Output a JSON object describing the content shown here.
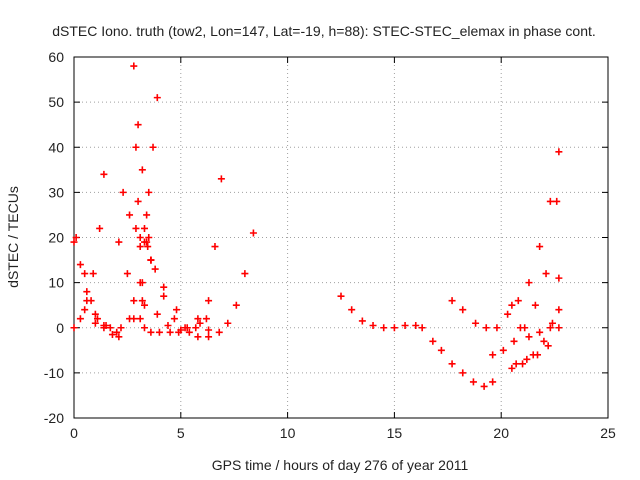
{
  "chart_data": {
    "type": "scatter",
    "title": "dSTEC Iono. truth (tow2, Lon=147, Lat=-19, h=88): STEC-STEC_elemax in phase cont.",
    "xlabel": "GPS time / hours of day 276 of year 2011",
    "ylabel": "dSTEC  / TECUs",
    "xlim": [
      0,
      25
    ],
    "ylim": [
      -20,
      60
    ],
    "xticks": [
      0,
      5,
      10,
      15,
      20,
      25
    ],
    "yticks": [
      -20,
      -10,
      0,
      10,
      20,
      30,
      40,
      50,
      60
    ],
    "grid": true,
    "marker": "plus",
    "color": "#ff0000",
    "series": [
      {
        "x": [
          0.0,
          0.3,
          0.6,
          1.0,
          1.4,
          1.8,
          2.1
        ],
        "y": [
          19,
          14,
          8,
          3,
          0,
          -1.5,
          -2
        ]
      },
      {
        "x": [
          0.0,
          0.3,
          0.6,
          0.9,
          1.2,
          1.4
        ],
        "y": [
          0,
          2,
          6,
          12,
          22,
          34
        ]
      },
      {
        "x": [
          0.1,
          0.5,
          0.8,
          1.1,
          1.4,
          1.7,
          2.2,
          2.8,
          3.2
        ],
        "y": [
          20,
          12,
          6,
          2,
          0.5,
          0,
          0,
          2,
          6
        ]
      },
      {
        "x": [
          0.5,
          1.0,
          1.5,
          2.0,
          2.6,
          3.1,
          3.5
        ],
        "y": [
          4,
          1,
          0.5,
          -1,
          2,
          10,
          20
        ]
      },
      {
        "x": [
          2.1,
          2.5,
          2.8,
          3.1,
          3.3,
          3.6,
          4.0,
          4.5,
          5.0
        ],
        "y": [
          19,
          12,
          6,
          2,
          0,
          -1,
          -1,
          -1,
          -0.5
        ]
      },
      {
        "x": [
          2.3,
          2.6,
          2.9,
          3.1,
          3.3,
          3.45,
          3.6
        ],
        "y": [
          30,
          25,
          22,
          20,
          19,
          18,
          15
        ]
      },
      {
        "x": [
          3.4,
          3.8,
          4.2,
          4.7,
          5.2,
          5.7,
          6.2
        ],
        "y": [
          19,
          13,
          7,
          2,
          0,
          0,
          2
        ]
      },
      {
        "x": [
          2.8,
          2.9,
          3.0,
          3.1,
          3.2,
          3.3
        ],
        "y": [
          58,
          40,
          28,
          18,
          10,
          5
        ]
      },
      {
        "x": [
          3.3,
          3.5,
          3.7,
          3.9
        ],
        "y": [
          22,
          30,
          40,
          51
        ]
      },
      {
        "x": [
          3.0,
          3.2,
          3.4,
          3.6
        ],
        "y": [
          45,
          35,
          25,
          15
        ]
      },
      {
        "x": [
          3.6,
          4.2,
          4.8,
          5.3,
          5.8,
          6.3
        ],
        "y": [
          15,
          9,
          4,
          0,
          -2,
          -2
        ]
      },
      {
        "x": [
          3.9,
          4.4,
          4.9,
          5.4,
          5.9,
          6.3,
          6.6,
          6.9
        ],
        "y": [
          3,
          0.5,
          -1,
          -1,
          1,
          6,
          18,
          33
        ]
      },
      {
        "x": [
          5.8,
          6.3,
          6.8,
          7.2,
          7.6,
          8.0,
          8.4
        ],
        "y": [
          2,
          -0.5,
          -1,
          1,
          5,
          12,
          21
        ]
      },
      {
        "x": [
          12.5,
          13.0,
          13.5,
          14.0,
          14.5,
          15.0,
          15.5,
          16.0,
          16.3
        ],
        "y": [
          7,
          4,
          1.5,
          0.5,
          0,
          0,
          0.5,
          0.5,
          0
        ]
      },
      {
        "x": [
          16.8,
          17.2,
          17.7,
          18.2,
          18.7,
          19.2,
          19.6
        ],
        "y": [
          -3,
          -5,
          -8,
          -10,
          -12,
          -13,
          -12
        ]
      },
      {
        "x": [
          17.7,
          18.2,
          18.8,
          19.3,
          19.8,
          20.3,
          20.8,
          21.3,
          21.8,
          22.3,
          22.7
        ],
        "y": [
          6,
          4,
          1,
          0,
          0,
          3,
          6,
          10,
          18,
          28,
          39
        ]
      },
      {
        "x": [
          19.6,
          20.1,
          20.6,
          21.1,
          21.6,
          22.1,
          22.6
        ],
        "y": [
          -6,
          -5,
          -3,
          0,
          5,
          12,
          28
        ]
      },
      {
        "x": [
          20.5,
          21.0,
          21.5,
          22.0,
          22.4,
          22.7
        ],
        "y": [
          -9,
          -8,
          -6,
          -3,
          1,
          11
        ]
      },
      {
        "x": [
          20.5,
          20.9,
          21.3,
          21.8,
          22.3,
          22.7
        ],
        "y": [
          5,
          0,
          -2,
          -1,
          0,
          0
        ]
      },
      {
        "x": [
          20.7,
          21.2,
          21.7,
          22.2,
          22.7
        ],
        "y": [
          -8,
          -7,
          -6,
          -4,
          4
        ]
      }
    ]
  }
}
